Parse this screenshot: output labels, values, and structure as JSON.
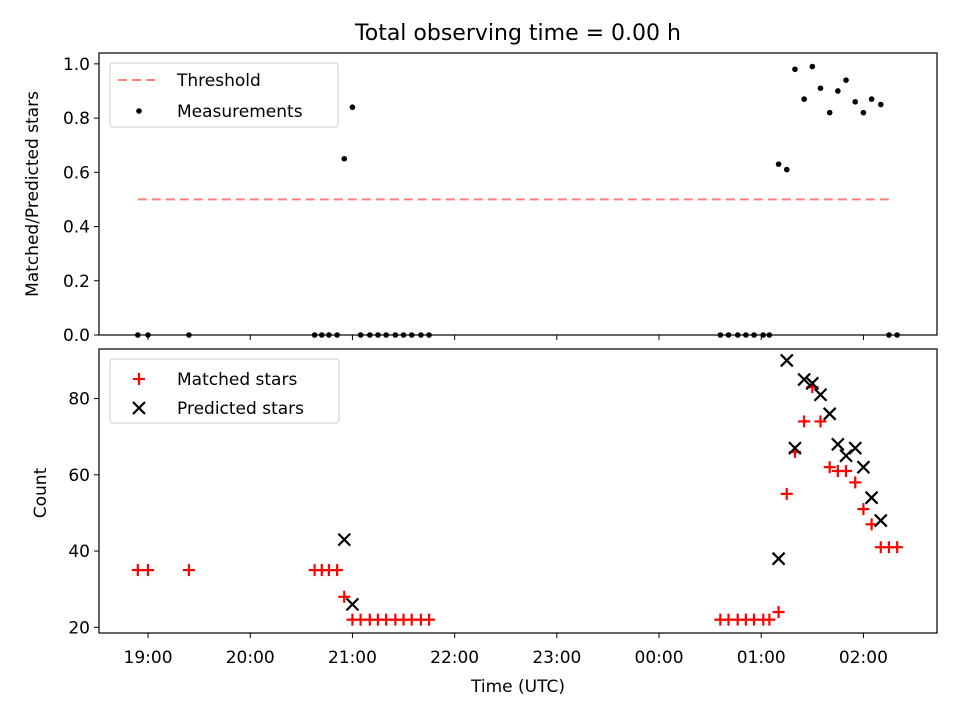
{
  "title": "Total observing time = 0.00 h",
  "chart_data": [
    {
      "type": "scatter",
      "ylabel": "Matched/Predicted stars",
      "xlabel": "",
      "ylim": [
        0,
        1.04
      ],
      "xlim": [
        18.52,
        26.72
      ],
      "yticks": [
        0.0,
        0.2,
        0.4,
        0.6,
        0.8,
        1.0
      ],
      "ytick_labels": [
        "0.0",
        "0.2",
        "0.4",
        "0.6",
        "0.8",
        "1.0"
      ],
      "legend": {
        "placement": "upper left"
      },
      "threshold": {
        "name": "Threshold",
        "value": 0.5,
        "x_range": [
          18.9,
          26.3
        ],
        "color": "#ff7f7f"
      },
      "series": [
        {
          "name": "Measurements",
          "marker": "dot",
          "color": "#000000",
          "x": [
            18.9,
            19.0,
            19.4,
            20.63,
            20.7,
            20.77,
            20.85,
            20.92,
            21.0,
            21.08,
            21.17,
            21.25,
            21.33,
            21.42,
            21.5,
            21.58,
            21.67,
            21.75,
            24.6,
            24.68,
            24.77,
            24.85,
            24.93,
            25.02,
            25.08,
            25.17,
            25.25,
            25.33,
            25.42,
            25.5,
            25.58,
            25.67,
            25.75,
            25.83,
            25.92,
            26.0,
            26.08,
            26.17,
            26.25,
            26.33
          ],
          "y": [
            0.0,
            0.0,
            0.0,
            0.0,
            0.0,
            0.0,
            0.0,
            0.65,
            0.84,
            0.0,
            0.0,
            0.0,
            0.0,
            0.0,
            0.0,
            0.0,
            0.0,
            0.0,
            0.0,
            0.0,
            0.0,
            0.0,
            0.0,
            0.0,
            0.0,
            0.63,
            0.61,
            0.98,
            0.87,
            0.99,
            0.91,
            0.82,
            0.9,
            0.94,
            0.86,
            0.82,
            0.87,
            0.85,
            0.0,
            0.0
          ]
        }
      ]
    },
    {
      "type": "scatter",
      "ylabel": "Count",
      "xlabel": "Time (UTC)",
      "ylim": [
        18.5,
        93
      ],
      "xlim": [
        18.52,
        26.72
      ],
      "yticks": [
        20,
        40,
        60,
        80
      ],
      "ytick_labels": [
        "20",
        "40",
        "60",
        "80"
      ],
      "xticks": [
        19,
        20,
        21,
        22,
        23,
        24,
        25,
        26
      ],
      "xtick_labels": [
        "19:00",
        "20:00",
        "21:00",
        "22:00",
        "23:00",
        "00:00",
        "01:00",
        "02:00"
      ],
      "legend": {
        "placement": "upper left"
      },
      "series": [
        {
          "name": "Matched stars",
          "marker": "plus",
          "color": "#ff0000",
          "x": [
            18.9,
            19.0,
            19.4,
            20.63,
            20.7,
            20.77,
            20.85,
            20.92,
            21.0,
            21.08,
            21.17,
            21.25,
            21.33,
            21.42,
            21.5,
            21.58,
            21.67,
            21.75,
            24.6,
            24.68,
            24.77,
            24.85,
            24.93,
            25.02,
            25.08,
            25.17,
            25.25,
            25.33,
            25.42,
            25.5,
            25.58,
            25.67,
            25.75,
            25.83,
            25.92,
            26.0,
            26.08,
            26.17,
            26.25,
            26.33
          ],
          "y": [
            35,
            35,
            35,
            35,
            35,
            35,
            35,
            28,
            22,
            22,
            22,
            22,
            22,
            22,
            22,
            22,
            22,
            22,
            22,
            22,
            22,
            22,
            22,
            22,
            22,
            24,
            55,
            66,
            74,
            83,
            74,
            62,
            61,
            61,
            58,
            51,
            47,
            41,
            41,
            41
          ]
        },
        {
          "name": "Predicted stars",
          "marker": "x",
          "color": "#000000",
          "x": [
            20.92,
            21.0,
            25.17,
            25.25,
            25.33,
            25.42,
            25.5,
            25.58,
            25.67,
            25.75,
            25.83,
            25.92,
            26.0,
            26.08,
            26.17
          ],
          "y": [
            43,
            26,
            38,
            90,
            67,
            85,
            84,
            81,
            76,
            68,
            65,
            67,
            62,
            54,
            48
          ]
        }
      ]
    }
  ]
}
